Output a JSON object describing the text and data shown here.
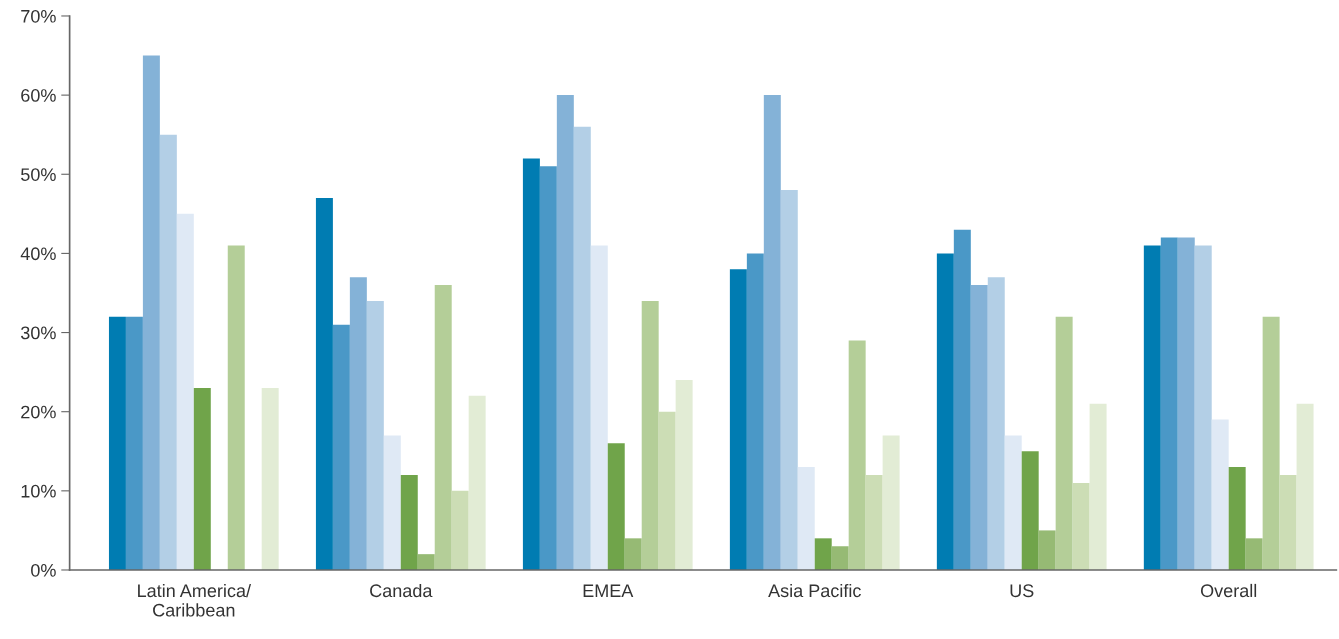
{
  "chart_data": {
    "type": "bar",
    "categories": [
      "Latin America/\nCaribbean",
      "Canada",
      "EMEA",
      "Asia Pacific",
      "US",
      "Overall"
    ],
    "series": [
      {
        "color": "#007cb2",
        "values": [
          32,
          47,
          52,
          38,
          40,
          41
        ]
      },
      {
        "color": "#4a98c7",
        "values": [
          32,
          31,
          51,
          40,
          43,
          42
        ]
      },
      {
        "color": "#84b2d7",
        "values": [
          65,
          37,
          60,
          60,
          36,
          42
        ]
      },
      {
        "color": "#b3cfe6",
        "values": [
          55,
          34,
          56,
          48,
          37,
          41
        ]
      },
      {
        "color": "#dfe9f5",
        "values": [
          45,
          17,
          41,
          13,
          17,
          19
        ]
      },
      {
        "color": "#70a44a",
        "values": [
          23,
          12,
          16,
          4,
          15,
          13
        ]
      },
      {
        "color": "#96ba74",
        "values": [
          null,
          2,
          4,
          3,
          5,
          4
        ]
      },
      {
        "color": "#b4ce98",
        "values": [
          41,
          36,
          34,
          29,
          32,
          32
        ]
      },
      {
        "color": "#ccddb5",
        "values": [
          null,
          10,
          20,
          12,
          11,
          12
        ]
      },
      {
        "color": "#e2ecd5",
        "values": [
          23,
          22,
          24,
          17,
          21,
          21
        ]
      }
    ],
    "ylim": [
      0,
      70
    ],
    "yticks": [
      {
        "value": 0,
        "label": "0%"
      },
      {
        "value": 10,
        "label": "10%"
      },
      {
        "value": 20,
        "label": "20%"
      },
      {
        "value": 30,
        "label": "30%"
      },
      {
        "value": 40,
        "label": "40%"
      },
      {
        "value": 50,
        "label": "50%"
      },
      {
        "value": 60,
        "label": "60%"
      },
      {
        "value": 70,
        "label": "70%"
      }
    ],
    "grid": false,
    "legend": false
  }
}
